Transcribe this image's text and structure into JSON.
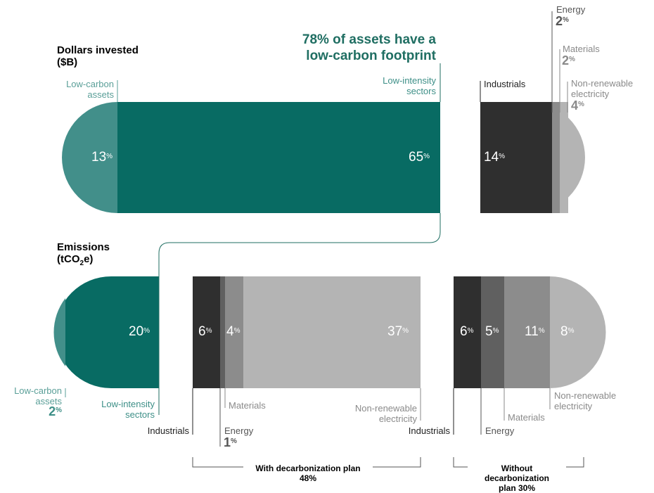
{
  "dollars": {
    "title": "Dollars invested",
    "unit": "($B)",
    "annotation_line1": "78% of assets have a",
    "annotation_line2": "low-carbon footprint",
    "segments": [
      {
        "label": "Low-carbon assets",
        "label_l1": "Low-carbon",
        "label_l2": "assets",
        "value": 13,
        "color": "#428f8a"
      },
      {
        "label": "Low-intensity sectors",
        "label_l1": "Low-intensity",
        "label_l2": "sectors",
        "value": 65,
        "color": "#086b63"
      },
      {
        "label": "Industrials",
        "value": 14,
        "color": "#2f2f2f"
      },
      {
        "label": "Energy",
        "value": 2,
        "color": "#606060"
      },
      {
        "label": "Materials",
        "value": 2,
        "color": "#8c8c8c"
      },
      {
        "label": "Non-renewable electricity",
        "label_l1": "Non-renewable",
        "label_l2": "electricity",
        "value": 4,
        "color": "#b4b4b4"
      }
    ]
  },
  "emissions": {
    "title": "Emissions",
    "unit_prefix": "(tCO",
    "unit_sub": "2",
    "unit_suffix": "e)",
    "low_carbon": {
      "label_l1": "Low-carbon",
      "label_l2": "assets",
      "value": 2,
      "color": "#428f8a"
    },
    "low_intensity": {
      "label_l1": "Low-intensity",
      "label_l2": "sectors",
      "value": 20,
      "color": "#086b63"
    },
    "with_plan": {
      "caption": "With decarbonization plan",
      "total": "48%",
      "segments": [
        {
          "label": "Industrials",
          "value": 6,
          "color": "#2f2f2f"
        },
        {
          "label": "Energy",
          "value": 1,
          "color": "#606060"
        },
        {
          "label": "Materials",
          "value": 4,
          "color": "#8c8c8c"
        },
        {
          "label": "Non-renewable electricity",
          "label_l1": "Non-renewable",
          "label_l2": "electricity",
          "value": 37,
          "color": "#b4b4b4"
        }
      ]
    },
    "without_plan": {
      "caption_l1": "Without",
      "caption_l2": "decarbonization",
      "caption_l3": "plan 30%",
      "segments": [
        {
          "label": "Industrials",
          "value": 6,
          "color": "#2f2f2f"
        },
        {
          "label": "Energy",
          "value": 5,
          "color": "#606060"
        },
        {
          "label": "Materials",
          "value": 11,
          "color": "#8c8c8c"
        },
        {
          "label": "Non-renewable electricity",
          "label_l1": "Non-renewable",
          "label_l2": "electricity",
          "value": 8,
          "color": "#b4b4b4"
        }
      ]
    }
  },
  "pct": "%"
}
